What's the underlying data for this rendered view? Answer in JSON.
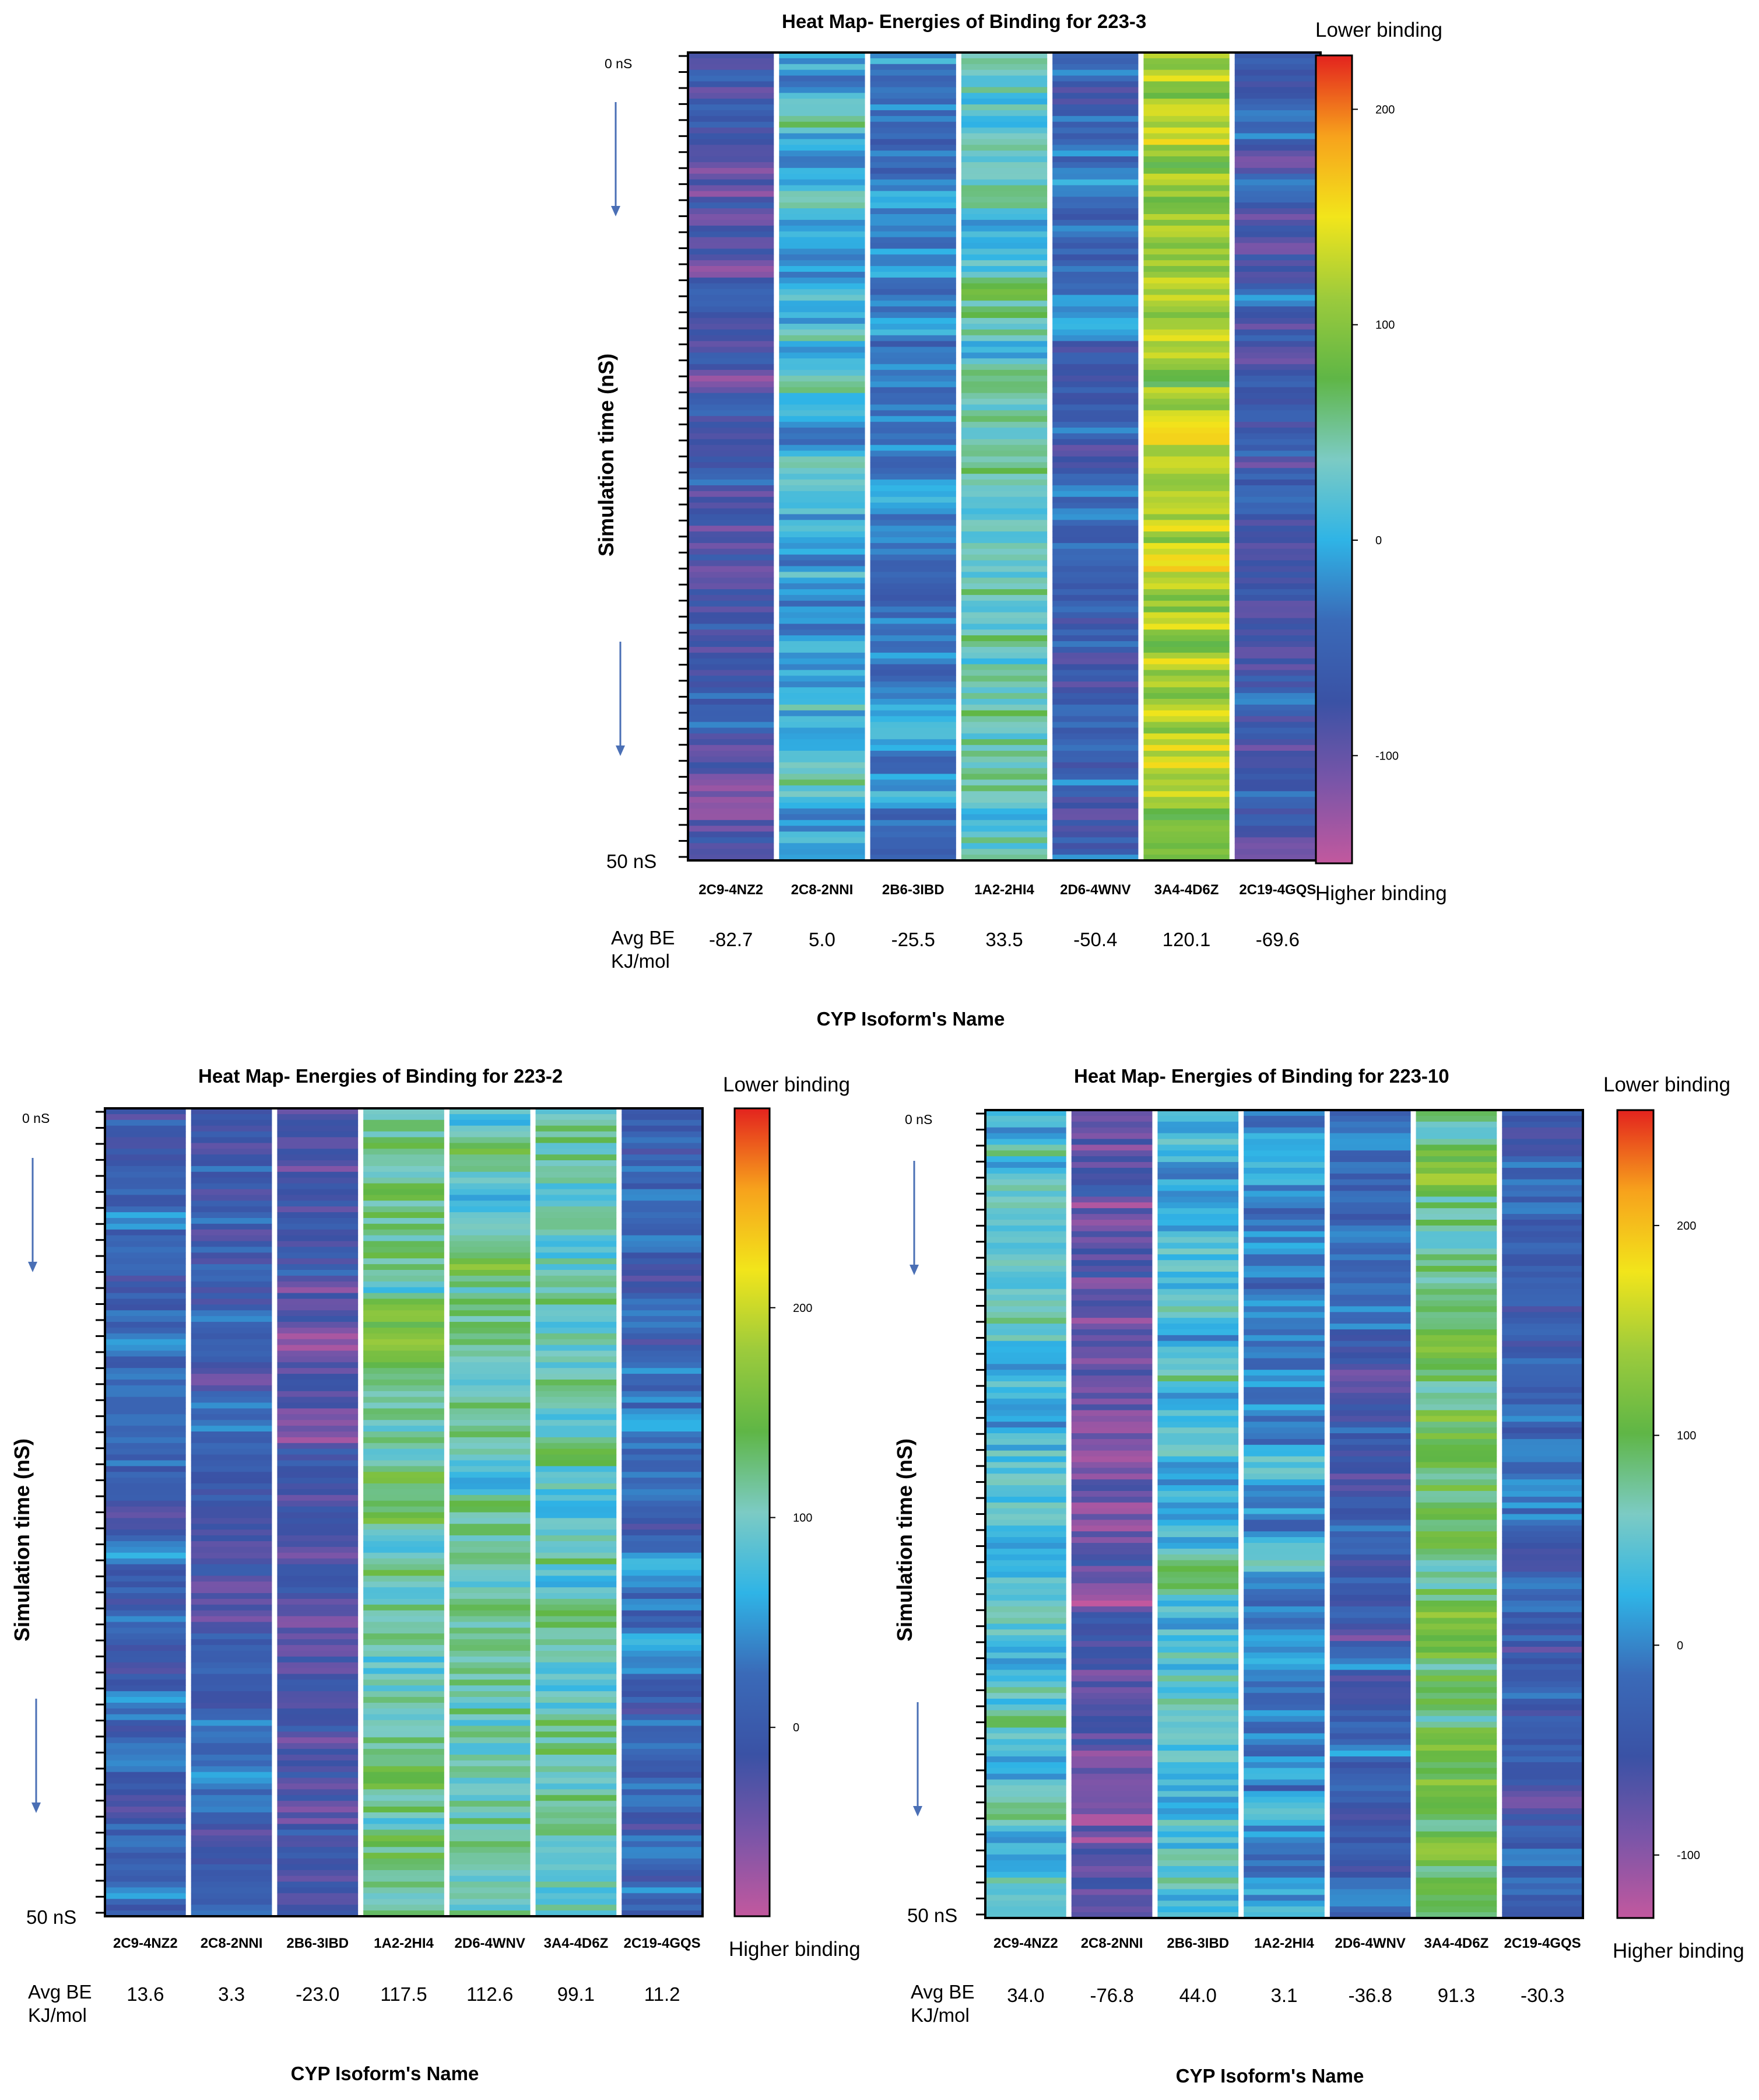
{
  "shared": {
    "y_axis_label": "Simulation time (nS)",
    "x_axis_label": "CYP Isoform's Name",
    "start_label": "0 nS",
    "end_label": "50 nS",
    "avg_label_line1": "Avg BE",
    "avg_label_line2": "KJ/mol",
    "colorbar_top_label": "Lower binding",
    "colorbar_bottom_label": "Higher  binding",
    "colormap": [
      "#c2589e",
      "#7a55a8",
      "#3a52a5",
      "#3a6ab8",
      "#2fb4e6",
      "#7ccbc4",
      "#5fb646",
      "#9ccb3c",
      "#f2e51b",
      "#f7a21c",
      "#e3231e"
    ],
    "arrow_color": "#4a6fb5",
    "border_color": "#000000",
    "separator_color": "#ffffff"
  },
  "chart_data": [
    {
      "type": "heatmap",
      "title": "Heat Map- Energies of Binding for 223-3",
      "xlabel": "CYP Isoform's Name",
      "ylabel": "Simulation time (nS)",
      "y_range_ns": [
        0,
        50
      ],
      "categories": [
        "2C9-4NZ2",
        "2C8-2NNI",
        "2B6-3IBD",
        "1A2-2HI4",
        "2D6-4WNV",
        "3A4-4D6Z",
        "2C19-4GQS"
      ],
      "avg_be_labels": [
        "-82.7",
        "5.0",
        "-25.5",
        "33.5",
        "-50.4",
        "120.1",
        "-69.6"
      ],
      "avg_be": [
        -82.7,
        5.0,
        -25.5,
        33.5,
        -50.4,
        120.1,
        -69.6
      ],
      "colorbar": {
        "min": -150,
        "max": 225,
        "ticks": [
          -100,
          0,
          100,
          200
        ],
        "tick_labels": [
          "-100",
          "0",
          "100",
          "200"
        ]
      }
    },
    {
      "type": "heatmap",
      "title": "Heat Map- Energies of Binding for 223-2",
      "xlabel": "CYP Isoform's Name",
      "ylabel": "Simulation time (nS)",
      "y_range_ns": [
        0,
        50
      ],
      "categories": [
        "2C9-4NZ2",
        "2C8-2NNI",
        "2B6-3IBD",
        "1A2-2HI4",
        "2D6-4WNV",
        "3A4-4D6Z",
        "2C19-4GQS"
      ],
      "avg_be_labels": [
        "13.6",
        "3.3",
        "-23.0",
        "117.5",
        "112.6",
        "99.1",
        "11.2"
      ],
      "avg_be": [
        13.6,
        3.3,
        -23.0,
        117.5,
        112.6,
        99.1,
        11.2
      ],
      "colorbar": {
        "min": -90,
        "max": 295,
        "ticks": [
          0,
          100,
          200
        ],
        "tick_labels": [
          "0",
          "100",
          "200"
        ]
      }
    },
    {
      "type": "heatmap",
      "title": "Heat Map- Energies of Binding for 223-10",
      "xlabel": "CYP Isoform's Name",
      "ylabel": "Simulation time (nS)",
      "y_range_ns": [
        0,
        50
      ],
      "categories": [
        "2C9-4NZ2",
        "2C8-2NNI",
        "2B6-3IBD",
        "1A2-2HI4",
        "2D6-4WNV",
        "3A4-4D6Z",
        "2C19-4GQS"
      ],
      "avg_be_labels": [
        "34.0",
        "-76.8",
        "44.0",
        "3.1",
        "-36.8",
        "91.3",
        "-30.3"
      ],
      "avg_be": [
        34.0,
        -76.8,
        44.0,
        3.1,
        -36.8,
        91.3,
        -30.3
      ],
      "colorbar": {
        "min": -130,
        "max": 255,
        "ticks": [
          -100,
          0,
          100,
          200
        ],
        "tick_labels": [
          "-100",
          "0",
          "100",
          "200"
        ]
      }
    }
  ]
}
